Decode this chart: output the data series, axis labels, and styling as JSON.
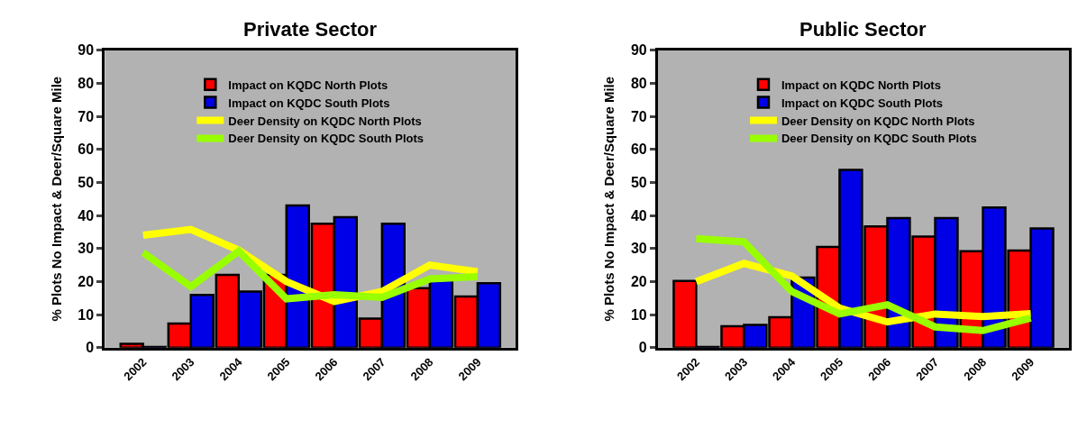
{
  "chart_data": [
    {
      "type": "bar",
      "title": "Private Sector",
      "ylabel": "% Plots No Impact & Deer/Square Mile",
      "categories": [
        "2002",
        "2003",
        "2004",
        "2005",
        "2006",
        "2007",
        "2008",
        "2009"
      ],
      "ylim": [
        0,
        90
      ],
      "yticks": [
        0,
        10,
        20,
        30,
        40,
        50,
        60,
        70,
        80,
        90
      ],
      "grid": false,
      "legend": "top",
      "series": [
        {
          "name": "Impact on KQDC North Plots",
          "color": "#ff0000",
          "values": [
            1.2,
            7.3,
            22,
            22,
            37.5,
            8.8,
            18,
            15.5
          ]
        },
        {
          "name": "Impact on KQDC South Plots",
          "color": "#0000e6",
          "values": [
            0.2,
            16,
            17,
            43,
            39.5,
            37.5,
            21,
            19.5
          ]
        },
        {
          "name": "Deer Density on KQDC North Plots",
          "type": "line",
          "color": "#ffff00",
          "values": [
            34,
            35.8,
            29.5,
            20,
            14,
            17,
            25,
            23
          ]
        },
        {
          "name": "Deer Density on KQDC South Plots",
          "type": "line",
          "color": "#99ff00",
          "values": [
            28.8,
            18.5,
            29.2,
            14.8,
            16,
            15.2,
            20.8,
            21.5
          ]
        }
      ]
    },
    {
      "type": "bar",
      "title": "Public Sector",
      "ylabel": "% Plots No Impact & Deer/Square Mile",
      "categories": [
        "2002",
        "2003",
        "2004",
        "2005",
        "2006",
        "2007",
        "2008",
        "2009"
      ],
      "ylim": [
        0,
        90
      ],
      "yticks": [
        0,
        10,
        20,
        30,
        40,
        50,
        60,
        70,
        80,
        90
      ],
      "grid": false,
      "legend": "top",
      "series": [
        {
          "name": "Impact on KQDC North Plots",
          "color": "#ff0000",
          "values": [
            20.2,
            6.5,
            9.2,
            30.5,
            36.7,
            33.6,
            29.2,
            29.4
          ]
        },
        {
          "name": "Impact on KQDC South Plots",
          "color": "#0000e6",
          "values": [
            0.2,
            6.9,
            21.2,
            53.8,
            39.2,
            39.2,
            42.4,
            36.1
          ]
        },
        {
          "name": "Deer Density on KQDC North Plots",
          "type": "line",
          "color": "#ffff00",
          "values": [
            20,
            25.5,
            21.7,
            12,
            7.8,
            10.2,
            9.4,
            10.3
          ]
        },
        {
          "name": "Deer Density on KQDC South Plots",
          "type": "line",
          "color": "#99ff00",
          "values": [
            33,
            32,
            17,
            10.2,
            13,
            6.3,
            5.2,
            9
          ]
        }
      ]
    }
  ]
}
